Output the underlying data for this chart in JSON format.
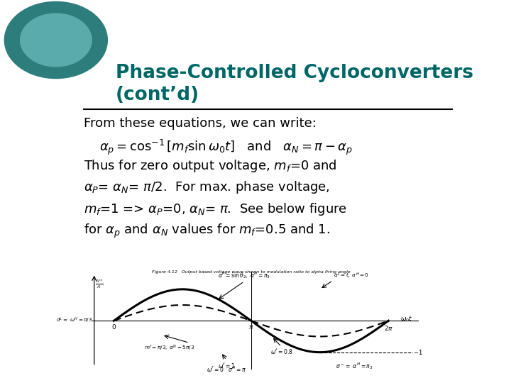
{
  "title_line1": "Phase-Controlled Cycloconverters",
  "title_line2": "(cont’d)",
  "title_color": "#006666",
  "bg_color": "#ffffff",
  "body_text_color": "#000000",
  "teal_dark": "#2e7d7d",
  "teal_light": "#5aabab"
}
